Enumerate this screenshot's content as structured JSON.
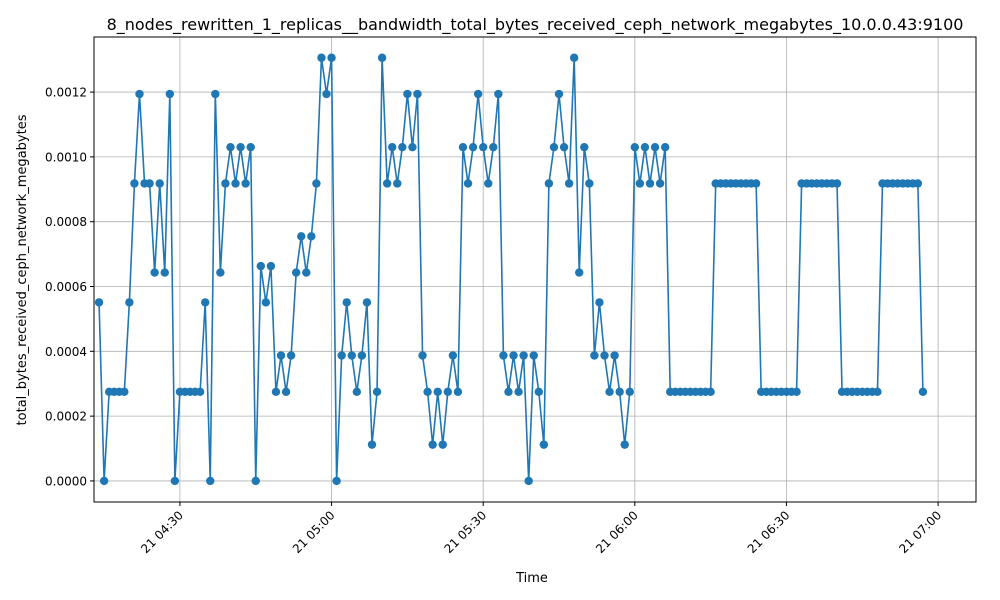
{
  "chart_data": {
    "type": "line",
    "title": "8_nodes_rewritten_1_replicas__bandwidth_total_bytes_received_ceph_network_megabytes_10.0.0.43:9100",
    "xlabel": "Time",
    "ylabel": "total_bytes_received_ceph_network_megabytes",
    "grid": true,
    "line_color": "#1f77b4",
    "x_ticks": [
      {
        "label": "21 04:30",
        "minute": 270
      },
      {
        "label": "21 05:00",
        "minute": 300
      },
      {
        "label": "21 05:30",
        "minute": 330
      },
      {
        "label": "21 06:00",
        "minute": 360
      },
      {
        "label": "21 06:30",
        "minute": 390
      },
      {
        "label": "21 07:00",
        "minute": 420
      }
    ],
    "y_ticks": [
      {
        "label": "0.0000",
        "value": 0.0
      },
      {
        "label": "0.0002",
        "value": 0.0002
      },
      {
        "label": "0.0004",
        "value": 0.0004
      },
      {
        "label": "0.0006",
        "value": 0.0006
      },
      {
        "label": "0.0008",
        "value": 0.0008
      },
      {
        "label": "0.0010",
        "value": 0.001
      },
      {
        "label": "0.0012",
        "value": 0.0012
      }
    ],
    "xlim_minutes": [
      253.0,
      427.5
    ],
    "ylim": [
      -6.5e-05,
      0.00137
    ],
    "series": [
      {
        "start_minute": 254,
        "step_minutes": 1,
        "values": [
          0.000551,
          0.0,
          0.000275,
          0.000275,
          0.000275,
          0.000275,
          0.000551,
          0.000918,
          0.001194,
          0.000918,
          0.000918,
          0.000643,
          0.000918,
          0.000643,
          0.001194,
          0.0,
          0.000275,
          0.000275,
          0.000275,
          0.000275,
          0.000275,
          0.000551,
          0.0,
          0.001194,
          0.000643,
          0.000918,
          0.00103,
          0.000918,
          0.00103,
          0.000918,
          0.00103,
          0.0,
          0.000663,
          0.000551,
          0.000663,
          0.000275,
          0.000387,
          0.000275,
          0.000387,
          0.000643,
          0.000755,
          0.000643,
          0.000755,
          0.000918,
          0.001306,
          0.001194,
          0.001306,
          0.0,
          0.000387,
          0.000551,
          0.000387,
          0.000275,
          0.000387,
          0.000551,
          0.000112,
          0.000275,
          0.001306,
          0.000918,
          0.00103,
          0.000918,
          0.00103,
          0.001194,
          0.00103,
          0.001194,
          0.000387,
          0.000275,
          0.000112,
          0.000275,
          0.000112,
          0.000275,
          0.000387,
          0.000275,
          0.00103,
          0.000918,
          0.00103,
          0.001194,
          0.00103,
          0.000918,
          0.00103,
          0.001194,
          0.000387,
          0.000275,
          0.000387,
          0.000275,
          0.000387,
          0.0,
          0.000387,
          0.000275,
          0.000112,
          0.000918,
          0.00103,
          0.001194,
          0.00103,
          0.000918,
          0.001306,
          0.000643,
          0.00103,
          0.000918,
          0.000387,
          0.000551,
          0.000387,
          0.000275,
          0.000387,
          0.000275,
          0.000112,
          0.000275,
          0.00103,
          0.000918,
          0.00103,
          0.000918,
          0.00103,
          0.000918,
          0.00103,
          0.000275,
          0.000275,
          0.000275,
          0.000275,
          0.000275,
          0.000275,
          0.000275,
          0.000275,
          0.000275,
          0.000918,
          0.000918,
          0.000918,
          0.000918,
          0.000918,
          0.000918,
          0.000918,
          0.000918,
          0.000918,
          0.000275,
          0.000275,
          0.000275,
          0.000275,
          0.000275,
          0.000275,
          0.000275,
          0.000275,
          0.000918,
          0.000918,
          0.000918,
          0.000918,
          0.000918,
          0.000918,
          0.000918,
          0.000918,
          0.000275,
          0.000275,
          0.000275,
          0.000275,
          0.000275,
          0.000275,
          0.000275,
          0.000275,
          0.000918,
          0.000918,
          0.000918,
          0.000918,
          0.000918,
          0.000918,
          0.000918,
          0.000918,
          0.000275
        ]
      }
    ]
  }
}
